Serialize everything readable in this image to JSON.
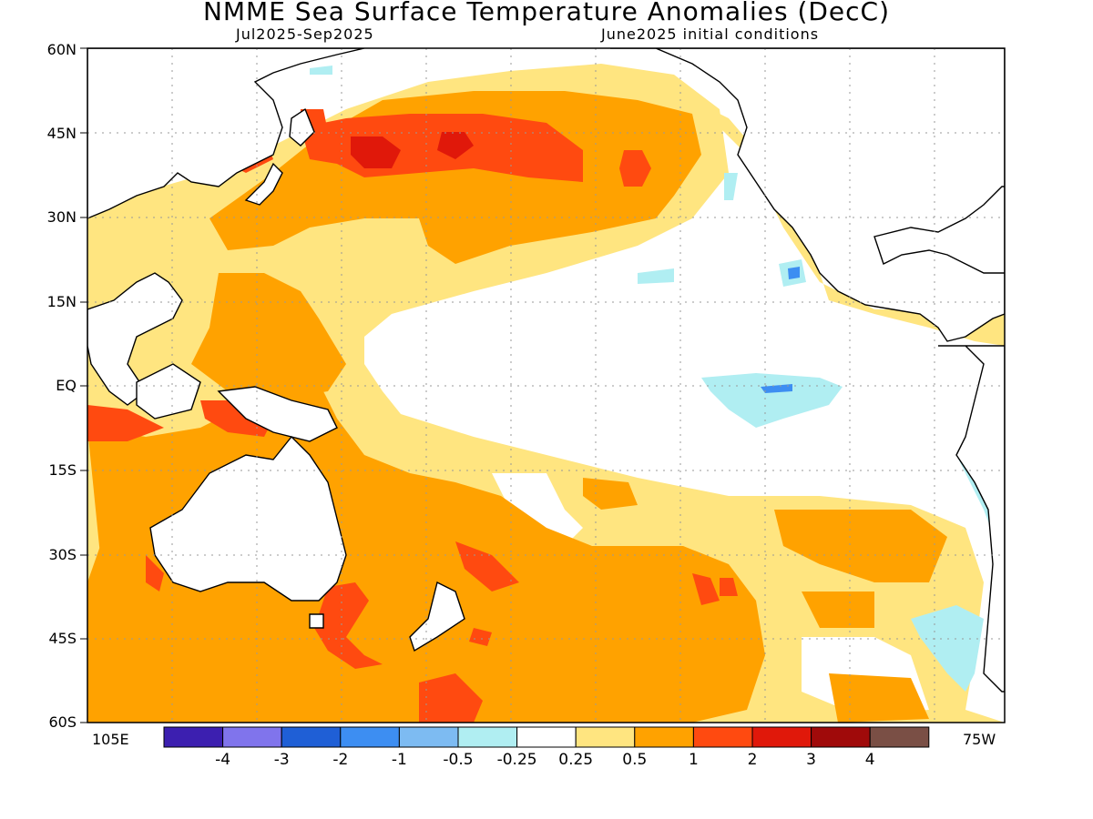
{
  "title": "NMME Sea Surface Temperature Anomalies (DecC)",
  "period": "Jul2025-Sep2025",
  "initial_conditions": "June2025 initial conditions",
  "lat_labels": [
    {
      "text": "60N",
      "value": 60
    },
    {
      "text": "45N",
      "value": 45
    },
    {
      "text": "30N",
      "value": 30
    },
    {
      "text": "15N",
      "value": 15
    },
    {
      "text": "EQ",
      "value": 0
    },
    {
      "text": "15S",
      "value": -15
    },
    {
      "text": "30S",
      "value": -30
    },
    {
      "text": "45S",
      "value": -45
    },
    {
      "text": "60S",
      "value": -60
    }
  ],
  "lon_labels": {
    "west_edge": "105E",
    "east_edge": "75W"
  },
  "colorbar": {
    "colors": [
      "#3c1fb0",
      "#8074ec",
      "#1f5fd6",
      "#3d8ef2",
      "#7dbbf2",
      "#b0eef2",
      "#ffffff",
      "#ffe580",
      "#ffa200",
      "#ff4a10",
      "#e0180a",
      "#a00a0a",
      "#7a4f45"
    ],
    "ticks": [
      "-4",
      "-3",
      "-2",
      "-1",
      "-0.5",
      "-0.25",
      "0.25",
      "0.5",
      "1",
      "2",
      "3",
      "4"
    ]
  }
}
